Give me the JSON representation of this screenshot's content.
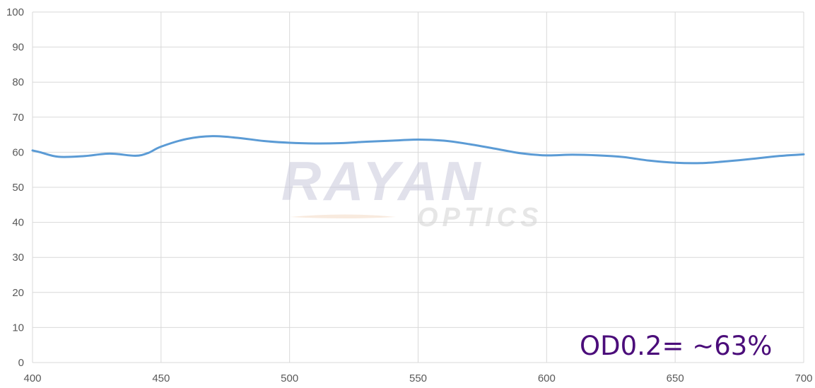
{
  "chart_data": {
    "type": "line",
    "title": "",
    "xlabel": "",
    "ylabel": "",
    "xlim": [
      400,
      700
    ],
    "ylim": [
      0,
      100
    ],
    "x_ticks": [
      "400",
      "450",
      "500",
      "550",
      "600",
      "650",
      "700"
    ],
    "y_ticks": [
      "0",
      "10",
      "20",
      "30",
      "40",
      "50",
      "60",
      "70",
      "80",
      "90",
      "100"
    ],
    "grid": true,
    "legend": "none",
    "series": [
      {
        "color": "#5b9bd5",
        "x": [
          400,
          403,
          410,
          420,
          430,
          440,
          445,
          450,
          460,
          470,
          480,
          490,
          500,
          510,
          520,
          530,
          540,
          550,
          560,
          570,
          580,
          590,
          600,
          610,
          620,
          630,
          640,
          650,
          660,
          670,
          680,
          690,
          700
        ],
        "y": [
          60.5,
          60.0,
          58.7,
          58.9,
          59.6,
          59.0,
          59.8,
          61.6,
          63.8,
          64.6,
          64.1,
          63.2,
          62.7,
          62.5,
          62.6,
          63.0,
          63.3,
          63.6,
          63.3,
          62.3,
          61.0,
          59.7,
          59.1,
          59.3,
          59.1,
          58.6,
          57.6,
          57.0,
          56.9,
          57.4,
          58.1,
          58.9,
          59.4
        ]
      }
    ]
  },
  "annotation": {
    "text": "OD0.2= ~63%",
    "color": "#4b0d7a"
  },
  "watermark": {
    "brand": "RAYAN",
    "sub": "OPTICS"
  },
  "colors": {
    "grid": "#d9d9d9",
    "tick_text": "#595959",
    "line": "#5b9bd5"
  }
}
